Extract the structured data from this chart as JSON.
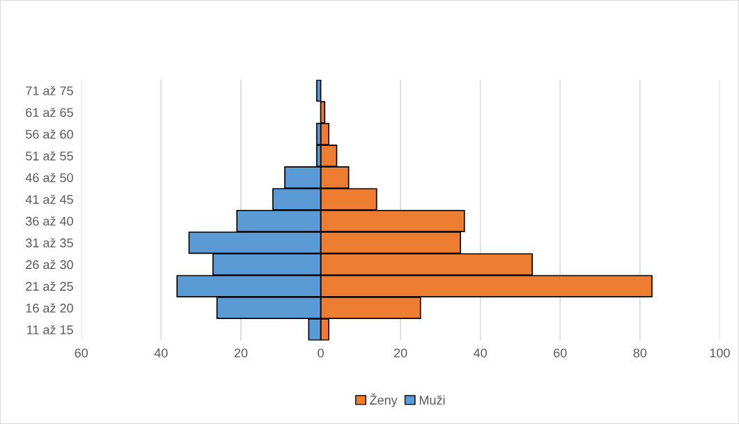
{
  "chart_data": {
    "type": "bar",
    "orientation": "horizontal",
    "stacked": true,
    "categories": [
      "71 až 75",
      "61 až 65",
      "56 až 60",
      "51 až 55",
      "46 až 50",
      "41 až 45",
      "36 až 40",
      "31 až 35",
      "26 až 30",
      "21 až 25",
      "16 až 20",
      "11 až 15"
    ],
    "series": [
      {
        "name": "Ženy",
        "color": "#ed7d31",
        "values": [
          0,
          1,
          2,
          4,
          7,
          14,
          36,
          35,
          53,
          83,
          25,
          2
        ]
      },
      {
        "name": "Muži",
        "color": "#5b9bd5",
        "values": [
          -1,
          0,
          -1,
          -1,
          -9,
          -12,
          -21,
          -33,
          -27,
          -36,
          -26,
          -3
        ]
      }
    ],
    "xlim": [
      -60,
      100
    ],
    "xticks": [
      {
        "value": -60,
        "label": "60"
      },
      {
        "value": -40,
        "label": "40"
      },
      {
        "value": -20,
        "label": "20"
      },
      0,
      20,
      40,
      60,
      80,
      100
    ],
    "grid": "x",
    "legend": "bottom"
  }
}
